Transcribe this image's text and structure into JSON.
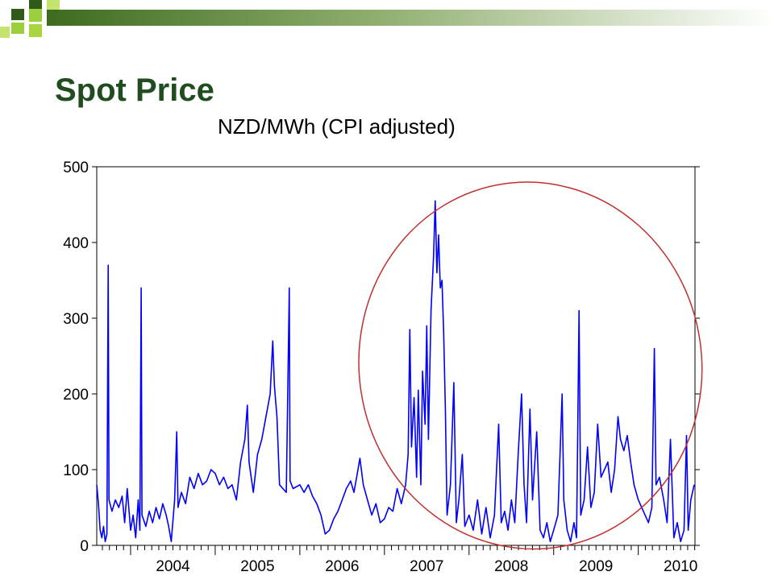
{
  "slide": {
    "title": "Spot Price",
    "colors": {
      "title": "#1f4d1f",
      "series": "#0000ff",
      "highlight": "#c0302f"
    }
  },
  "chart_data": {
    "type": "line",
    "title": "NZD/MWh  (CPI adjusted)",
    "xlabel": "",
    "ylabel": "",
    "xlim": [
      2003.6,
      2010.67
    ],
    "ylim": [
      0,
      500
    ],
    "y_ticks": [
      "0",
      "100",
      "200",
      "300",
      "400",
      "500"
    ],
    "x_ticks": [
      "2004",
      "2005",
      "2006",
      "2007",
      "2008",
      "2009",
      "2010"
    ],
    "grid": false,
    "legend": "none",
    "annotation": {
      "type": "ellipse",
      "shape": "red outline",
      "x_range": [
        2006.7,
        2010.75
      ],
      "y_range": [
        -5,
        480
      ]
    },
    "series": [
      {
        "color": "#0000ff",
        "points": [
          [
            2003.6,
            80
          ],
          [
            2003.62,
            55
          ],
          [
            2003.64,
            20
          ],
          [
            2003.66,
            10
          ],
          [
            2003.68,
            25
          ],
          [
            2003.7,
            5
          ],
          [
            2003.72,
            15
          ],
          [
            2003.735,
            370
          ],
          [
            2003.745,
            60
          ],
          [
            2003.78,
            45
          ],
          [
            2003.82,
            60
          ],
          [
            2003.86,
            50
          ],
          [
            2003.9,
            65
          ],
          [
            2003.93,
            30
          ],
          [
            2003.96,
            75
          ],
          [
            2004.0,
            20
          ],
          [
            2004.03,
            40
          ],
          [
            2004.06,
            10
          ],
          [
            2004.09,
            60
          ],
          [
            2004.11,
            20
          ],
          [
            2004.125,
            340
          ],
          [
            2004.135,
            40
          ],
          [
            2004.18,
            25
          ],
          [
            2004.22,
            45
          ],
          [
            2004.26,
            30
          ],
          [
            2004.3,
            50
          ],
          [
            2004.34,
            35
          ],
          [
            2004.38,
            55
          ],
          [
            2004.42,
            40
          ],
          [
            2004.45,
            25
          ],
          [
            2004.48,
            5
          ],
          [
            2004.52,
            60
          ],
          [
            2004.545,
            150
          ],
          [
            2004.56,
            50
          ],
          [
            2004.6,
            70
          ],
          [
            2004.65,
            55
          ],
          [
            2004.7,
            90
          ],
          [
            2004.75,
            75
          ],
          [
            2004.8,
            95
          ],
          [
            2004.85,
            80
          ],
          [
            2004.9,
            85
          ],
          [
            2004.95,
            100
          ],
          [
            2005.0,
            95
          ],
          [
            2005.05,
            80
          ],
          [
            2005.1,
            90
          ],
          [
            2005.15,
            75
          ],
          [
            2005.2,
            80
          ],
          [
            2005.25,
            60
          ],
          [
            2005.3,
            110
          ],
          [
            2005.35,
            140
          ],
          [
            2005.38,
            185
          ],
          [
            2005.4,
            110
          ],
          [
            2005.45,
            70
          ],
          [
            2005.5,
            120
          ],
          [
            2005.55,
            140
          ],
          [
            2005.6,
            170
          ],
          [
            2005.65,
            200
          ],
          [
            2005.68,
            270
          ],
          [
            2005.7,
            210
          ],
          [
            2005.73,
            170
          ],
          [
            2005.76,
            80
          ],
          [
            2005.8,
            75
          ],
          [
            2005.84,
            70
          ],
          [
            2005.875,
            340
          ],
          [
            2005.885,
            85
          ],
          [
            2005.92,
            75
          ],
          [
            2006.0,
            80
          ],
          [
            2006.05,
            70
          ],
          [
            2006.1,
            80
          ],
          [
            2006.15,
            65
          ],
          [
            2006.2,
            55
          ],
          [
            2006.25,
            40
          ],
          [
            2006.3,
            15
          ],
          [
            2006.35,
            20
          ],
          [
            2006.4,
            35
          ],
          [
            2006.45,
            45
          ],
          [
            2006.5,
            60
          ],
          [
            2006.55,
            75
          ],
          [
            2006.6,
            85
          ],
          [
            2006.64,
            70
          ],
          [
            2006.68,
            95
          ],
          [
            2006.71,
            115
          ],
          [
            2006.75,
            80
          ],
          [
            2006.8,
            60
          ],
          [
            2006.85,
            40
          ],
          [
            2006.9,
            55
          ],
          [
            2006.95,
            30
          ],
          [
            2007.0,
            35
          ],
          [
            2007.05,
            50
          ],
          [
            2007.1,
            45
          ],
          [
            2007.15,
            75
          ],
          [
            2007.2,
            55
          ],
          [
            2007.25,
            80
          ],
          [
            2007.28,
            120
          ],
          [
            2007.3,
            285
          ],
          [
            2007.32,
            130
          ],
          [
            2007.35,
            195
          ],
          [
            2007.38,
            90
          ],
          [
            2007.4,
            205
          ],
          [
            2007.43,
            80
          ],
          [
            2007.45,
            230
          ],
          [
            2007.48,
            160
          ],
          [
            2007.5,
            290
          ],
          [
            2007.52,
            140
          ],
          [
            2007.55,
            310
          ],
          [
            2007.58,
            380
          ],
          [
            2007.6,
            455
          ],
          [
            2007.62,
            360
          ],
          [
            2007.64,
            410
          ],
          [
            2007.66,
            340
          ],
          [
            2007.68,
            350
          ],
          [
            2007.7,
            280
          ],
          [
            2007.72,
            180
          ],
          [
            2007.74,
            40
          ],
          [
            2007.78,
            80
          ],
          [
            2007.82,
            215
          ],
          [
            2007.85,
            30
          ],
          [
            2007.88,
            60
          ],
          [
            2007.92,
            120
          ],
          [
            2007.95,
            25
          ],
          [
            2008.0,
            40
          ],
          [
            2008.05,
            20
          ],
          [
            2008.1,
            60
          ],
          [
            2008.15,
            15
          ],
          [
            2008.2,
            50
          ],
          [
            2008.25,
            10
          ],
          [
            2008.3,
            40
          ],
          [
            2008.35,
            160
          ],
          [
            2008.38,
            30
          ],
          [
            2008.42,
            45
          ],
          [
            2008.46,
            20
          ],
          [
            2008.5,
            60
          ],
          [
            2008.54,
            30
          ],
          [
            2008.58,
            120
          ],
          [
            2008.62,
            200
          ],
          [
            2008.65,
            80
          ],
          [
            2008.68,
            30
          ],
          [
            2008.72,
            180
          ],
          [
            2008.75,
            60
          ],
          [
            2008.8,
            150
          ],
          [
            2008.84,
            20
          ],
          [
            2008.88,
            10
          ],
          [
            2008.92,
            30
          ],
          [
            2008.96,
            5
          ],
          [
            2009.0,
            20
          ],
          [
            2009.05,
            40
          ],
          [
            2009.1,
            200
          ],
          [
            2009.12,
            60
          ],
          [
            2009.16,
            20
          ],
          [
            2009.2,
            5
          ],
          [
            2009.24,
            30
          ],
          [
            2009.27,
            10
          ],
          [
            2009.3,
            310
          ],
          [
            2009.32,
            40
          ],
          [
            2009.36,
            60
          ],
          [
            2009.4,
            130
          ],
          [
            2009.44,
            50
          ],
          [
            2009.48,
            70
          ],
          [
            2009.52,
            160
          ],
          [
            2009.56,
            90
          ],
          [
            2009.6,
            100
          ],
          [
            2009.64,
            110
          ],
          [
            2009.68,
            70
          ],
          [
            2009.72,
            100
          ],
          [
            2009.76,
            170
          ],
          [
            2009.79,
            140
          ],
          [
            2009.83,
            125
          ],
          [
            2009.87,
            145
          ],
          [
            2009.91,
            110
          ],
          [
            2009.95,
            80
          ],
          [
            2010.0,
            60
          ],
          [
            2010.04,
            50
          ],
          [
            2010.08,
            40
          ],
          [
            2010.12,
            30
          ],
          [
            2010.16,
            50
          ],
          [
            2010.19,
            260
          ],
          [
            2010.21,
            80
          ],
          [
            2010.25,
            90
          ],
          [
            2010.3,
            60
          ],
          [
            2010.34,
            30
          ],
          [
            2010.38,
            140
          ],
          [
            2010.42,
            10
          ],
          [
            2010.46,
            30
          ],
          [
            2010.5,
            5
          ],
          [
            2010.54,
            20
          ],
          [
            2010.57,
            145
          ],
          [
            2010.59,
            20
          ],
          [
            2010.62,
            60
          ],
          [
            2010.66,
            80
          ]
        ]
      }
    ]
  }
}
